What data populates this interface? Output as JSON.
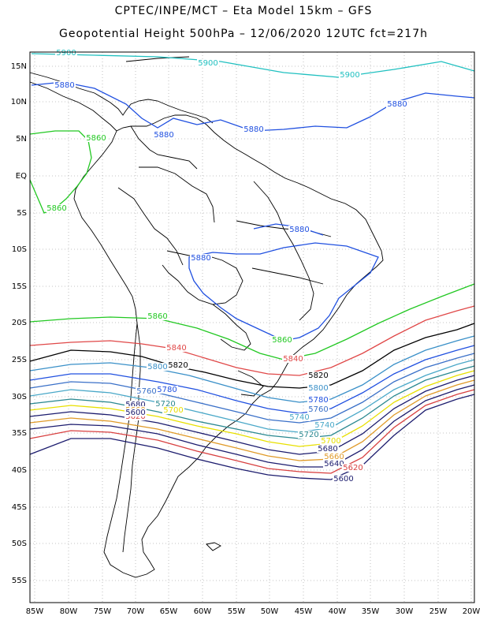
{
  "title_line1": "CPTEC/INPE/MCT  –   Eta Model 15km  –  GFS",
  "title_line2": "Geopotential Height 500hPa  –  12/06/2020 12UTC fct=217h",
  "lat_labels": [
    "15N",
    "10N",
    "5N",
    "EQ",
    "5S",
    "10S",
    "15S",
    "20S",
    "25S",
    "30S",
    "35S",
    "40S",
    "45S",
    "50S",
    "55S"
  ],
  "lon_labels": [
    "85W",
    "80W",
    "75W",
    "70W",
    "65W",
    "60W",
    "55W",
    "50W",
    "45W",
    "40W",
    "35W",
    "30W",
    "25W",
    "20W"
  ],
  "colors": {
    "c5500": "#1c1c6e",
    "c5520": "#d84040",
    "c5560": "#e09a28",
    "c5600": "#e8e000",
    "c5640": "#58a8c8",
    "c5680": "#2a8890",
    "c5720": "#3aa0d0",
    "c5760": "#3a70c8",
    "c5780": "#2040d8",
    "c5820": "#000000",
    "c5840": "#e04848",
    "c5860": "#22c822",
    "c5880": "#2050e0",
    "c5900": "#20c0c0",
    "coast": "#000000"
  },
  "contours": [
    {
      "label": "5900",
      "color": "#20c0c0"
    },
    {
      "label": "5880",
      "color": "#2050e0"
    },
    {
      "label": "5860",
      "color": "#22c822"
    },
    {
      "label": "5840",
      "color": "#e04848"
    },
    {
      "label": "5820",
      "color": "#000000"
    },
    {
      "label": "5800",
      "color": "#3a90c8"
    },
    {
      "label": "5780",
      "color": "#2050e0"
    },
    {
      "label": "5760",
      "color": "#3a70c8"
    },
    {
      "label": "5740",
      "color": "#4aa8c8"
    },
    {
      "label": "5720",
      "color": "#2a8890"
    },
    {
      "label": "5700",
      "color": "#e8e000"
    },
    {
      "label": "5680",
      "color": "#1c1c6e"
    },
    {
      "label": "5660",
      "color": "#e09a28"
    },
    {
      "label": "5640",
      "color": "#1c1c6e"
    },
    {
      "label": "5620",
      "color": "#d84040"
    },
    {
      "label": "5600",
      "color": "#1c1c6e"
    }
  ],
  "contour_labels": [
    {
      "text": "5900",
      "color": "#20c0c0"
    },
    {
      "text": "5900",
      "color": "#20c0c0"
    },
    {
      "text": "5900",
      "color": "#20c0c0"
    },
    {
      "text": "5880",
      "color": "#2050e0"
    },
    {
      "text": "5880",
      "color": "#2050e0"
    },
    {
      "text": "5880",
      "color": "#2050e0"
    },
    {
      "text": "5880",
      "color": "#2050e0"
    },
    {
      "text": "5880",
      "color": "#2050e0"
    },
    {
      "text": "5880",
      "color": "#2050e0"
    },
    {
      "text": "5860",
      "color": "#22c822"
    },
    {
      "text": "5860",
      "color": "#22c822"
    },
    {
      "text": "5860",
      "color": "#22c822"
    },
    {
      "text": "5860",
      "color": "#22c822"
    },
    {
      "text": "5840",
      "color": "#e04848"
    },
    {
      "text": "5840",
      "color": "#e04848"
    },
    {
      "text": "5820",
      "color": "#000000"
    },
    {
      "text": "5820",
      "color": "#000000"
    },
    {
      "text": "5800",
      "color": "#3a90c8"
    },
    {
      "text": "5800",
      "color": "#3a90c8"
    },
    {
      "text": "5780",
      "color": "#2050e0"
    },
    {
      "text": "5780",
      "color": "#2050e0"
    },
    {
      "text": "5760",
      "color": "#3a70c8"
    },
    {
      "text": "5760",
      "color": "#3a70c8"
    },
    {
      "text": "5740",
      "color": "#4aa8c8"
    },
    {
      "text": "5740",
      "color": "#4aa8c8"
    },
    {
      "text": "5720",
      "color": "#2a8890"
    },
    {
      "text": "5720",
      "color": "#2a8890"
    },
    {
      "text": "5700",
      "color": "#e8e000"
    },
    {
      "text": "5700",
      "color": "#e8e000"
    },
    {
      "text": "5680",
      "color": "#1c1c6e"
    },
    {
      "text": "5680",
      "color": "#1c1c6e"
    },
    {
      "text": "5660",
      "color": "#e09a28"
    },
    {
      "text": "5660",
      "color": "#e09a28"
    },
    {
      "text": "5640",
      "color": "#1c1c6e"
    },
    {
      "text": "5640",
      "color": "#1c1c6e"
    },
    {
      "text": "5620",
      "color": "#d84040"
    },
    {
      "text": "5620",
      "color": "#d84040"
    },
    {
      "text": "5600",
      "color": "#1c1c6e"
    },
    {
      "text": "5600",
      "color": "#1c1c6e"
    }
  ]
}
